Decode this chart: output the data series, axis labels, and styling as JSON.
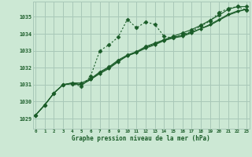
{
  "bg_color": "#cce8d4",
  "grid_color": "#a8c8b8",
  "line_color": "#1a5c28",
  "title": "Graphe pression niveau de la mer (hPa)",
  "xlabel_ticks": [
    0,
    1,
    2,
    3,
    4,
    5,
    6,
    7,
    8,
    9,
    10,
    11,
    12,
    13,
    14,
    15,
    16,
    17,
    18,
    19,
    20,
    21,
    22,
    23
  ],
  "yticks": [
    1029,
    1030,
    1031,
    1032,
    1033,
    1034,
    1035
  ],
  "ylim": [
    1028.4,
    1035.9
  ],
  "xlim": [
    -0.3,
    23.3
  ],
  "series": [
    {
      "x": [
        0,
        1,
        2,
        3,
        4,
        5,
        6,
        7,
        8,
        9,
        10,
        11,
        12,
        13,
        14,
        15,
        16,
        17,
        18,
        19,
        20,
        21,
        22,
        23
      ],
      "y": [
        1029.2,
        1029.8,
        1030.5,
        1031.0,
        1031.05,
        1030.9,
        1031.5,
        1033.0,
        1033.35,
        1033.8,
        1034.85,
        1034.35,
        1034.7,
        1034.55,
        1033.85,
        1033.75,
        1033.95,
        1034.15,
        1034.45,
        1034.75,
        1035.25,
        1035.5,
        1035.6,
        1035.4
      ],
      "style": "dotted",
      "marker": "D",
      "markersize": 2.5,
      "linewidth": 0.8
    },
    {
      "x": [
        0,
        1,
        2,
        3,
        4,
        5,
        6,
        7,
        8,
        9,
        10,
        11,
        12,
        13,
        14,
        15,
        16,
        17,
        18,
        19,
        20,
        21,
        22,
        23
      ],
      "y": [
        1029.2,
        1029.8,
        1030.5,
        1031.0,
        1031.05,
        1031.0,
        1031.3,
        1031.65,
        1031.95,
        1032.35,
        1032.7,
        1032.9,
        1033.15,
        1033.35,
        1033.6,
        1033.75,
        1033.85,
        1034.05,
        1034.3,
        1034.55,
        1034.85,
        1035.15,
        1035.35,
        1035.45
      ],
      "style": "solid",
      "marker": "D",
      "markersize": 2.0,
      "linewidth": 0.8
    },
    {
      "x": [
        0,
        1,
        2,
        3,
        4,
        5,
        6,
        7,
        8,
        9,
        10,
        11,
        12,
        13,
        14,
        15,
        16,
        17,
        18,
        19,
        20,
        21,
        22,
        23
      ],
      "y": [
        1029.2,
        1029.8,
        1030.5,
        1031.0,
        1031.1,
        1031.0,
        1031.3,
        1031.7,
        1032.0,
        1032.4,
        1032.7,
        1032.9,
        1033.2,
        1033.4,
        1033.6,
        1033.8,
        1033.9,
        1034.1,
        1034.3,
        1034.5,
        1034.8,
        1035.1,
        1035.3,
        1035.45
      ],
      "style": "solid",
      "marker": null,
      "markersize": 0,
      "linewidth": 0.8
    },
    {
      "x": [
        0,
        1,
        2,
        3,
        4,
        5,
        6,
        7,
        8,
        9,
        10,
        11,
        12,
        13,
        14,
        15,
        16,
        17,
        18,
        19,
        20,
        21,
        22,
        23
      ],
      "y": [
        1029.2,
        1029.8,
        1030.5,
        1031.0,
        1031.1,
        1031.1,
        1031.35,
        1031.75,
        1032.05,
        1032.45,
        1032.75,
        1032.95,
        1033.25,
        1033.45,
        1033.65,
        1033.85,
        1034.05,
        1034.25,
        1034.5,
        1034.8,
        1035.1,
        1035.45,
        1035.6,
        1035.6
      ],
      "style": "solid",
      "marker": "D",
      "markersize": 2.5,
      "linewidth": 0.8
    }
  ]
}
